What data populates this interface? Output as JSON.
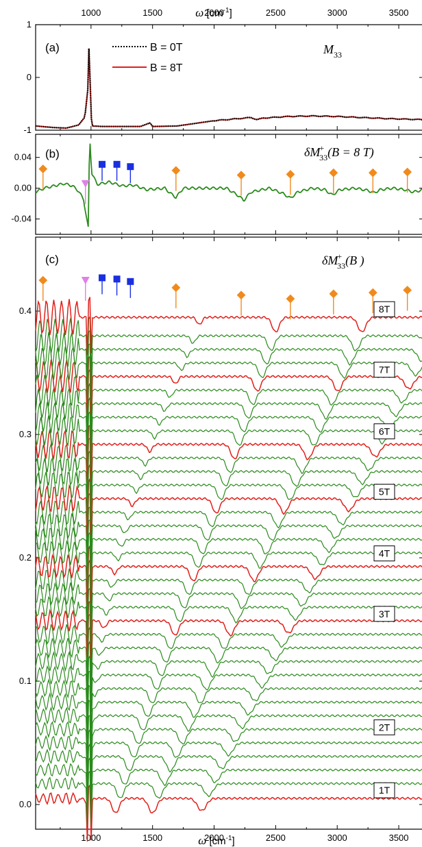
{
  "chart_data": [
    {
      "panel": "(a)",
      "type": "line",
      "quantity_label": "M33",
      "xlim": [
        550,
        3700
      ],
      "ylim": [
        -1,
        1
      ],
      "y_ticks": [
        "1",
        "0",
        "-1"
      ],
      "series": [
        {
          "name": "B = 0T",
          "color": "#000000",
          "style": "dotted",
          "x": [
            550,
            650,
            700,
            800,
            900,
            950,
            975,
            985,
            995,
            1005,
            1100,
            1400,
            1480,
            1500,
            1700,
            2000,
            2300,
            2350,
            2400,
            2600,
            2800,
            3000,
            3200,
            3400,
            3700
          ],
          "y": [
            -0.92,
            -0.94,
            -0.95,
            -0.96,
            -0.9,
            -0.75,
            -0.2,
            0.72,
            -0.3,
            -0.92,
            -0.93,
            -0.93,
            -0.86,
            -0.93,
            -0.92,
            -0.82,
            -0.76,
            -0.8,
            -0.77,
            -0.74,
            -0.73,
            -0.74,
            -0.76,
            -0.78,
            -0.8
          ]
        },
        {
          "name": "B = 8T",
          "color": "#e0201b",
          "style": "solid",
          "x": [
            550,
            650,
            700,
            800,
            900,
            950,
            975,
            985,
            995,
            1005,
            1100,
            1400,
            1480,
            1500,
            1700,
            2000,
            2300,
            2350,
            2400,
            2600,
            2800,
            3000,
            3200,
            3400,
            3700
          ],
          "y": [
            -0.92,
            -0.94,
            -0.95,
            -0.96,
            -0.9,
            -0.75,
            -0.2,
            0.72,
            -0.3,
            -0.92,
            -0.93,
            -0.93,
            -0.86,
            -0.93,
            -0.92,
            -0.82,
            -0.76,
            -0.8,
            -0.77,
            -0.74,
            -0.73,
            -0.74,
            -0.76,
            -0.78,
            -0.8
          ]
        }
      ]
    },
    {
      "panel": "(b)",
      "type": "line",
      "quantity_label": "δM33+(B = 8 T)",
      "xlim": [
        550,
        3700
      ],
      "ylim": [
        -0.06,
        0.07
      ],
      "y_ticks": [
        "0.04",
        "0.00",
        "-0.04"
      ],
      "series": [
        {
          "color": "#2a8a1c",
          "x": [
            550,
            620,
            700,
            780,
            850,
            900,
            940,
            965,
            978,
            985,
            992,
            1005,
            1050,
            1150,
            1250,
            1350,
            1450,
            1600,
            1640,
            1690,
            1750,
            1900,
            2100,
            2200,
            2240,
            2300,
            2450,
            2560,
            2620,
            2680,
            2800,
            2900,
            2960,
            3020,
            3150,
            3250,
            3300,
            3350,
            3450,
            3550,
            3620,
            3700
          ],
          "y": [
            -0.005,
            0.0,
            0.003,
            0.006,
            0.003,
            -0.004,
            -0.015,
            -0.04,
            -0.052,
            0.03,
            0.06,
            0.02,
            0.005,
            0.008,
            0.003,
            0.004,
            -0.002,
            0.0,
            -0.006,
            -0.012,
            0.0,
            0.0,
            0.0,
            -0.01,
            -0.016,
            -0.005,
            0.0,
            -0.007,
            -0.013,
            -0.005,
            0.0,
            -0.002,
            -0.009,
            -0.002,
            0.0,
            -0.003,
            -0.006,
            -0.002,
            0.0,
            -0.002,
            -0.005,
            -0.002
          ]
        }
      ],
      "markers": {
        "orange_diamonds_x": [
          610,
          1690,
          2220,
          2620,
          2970,
          3290,
          3570
        ],
        "orange_diamonds_y": [
          0.025,
          0.023,
          0.017,
          0.018,
          0.02,
          0.02,
          0.021
        ],
        "blue_squares_x": [
          1090,
          1210,
          1320
        ],
        "blue_squares_y": [
          0.031,
          0.031,
          0.028
        ],
        "violet_triangle_x": [
          955
        ],
        "violet_triangle_y": [
          0.006
        ]
      }
    },
    {
      "panel": "(c)",
      "type": "line",
      "quantity_label": "δM33+(B )",
      "xlabel": "ω [cm-1]",
      "xlim": [
        550,
        3700
      ],
      "x_ticks": [
        "1000",
        "1500",
        "2000",
        "2500",
        "3000",
        "3500"
      ],
      "ylim": [
        -0.02,
        0.46
      ],
      "y_ticks": [
        "0.4",
        "0.3",
        "0.2",
        "0.1",
        "0.0"
      ],
      "field_labels": [
        "8T",
        "7T",
        "6T",
        "5T",
        "4T",
        "3T",
        "2T",
        "1T"
      ],
      "field_offsets": [
        0.395,
        0.346,
        0.296,
        0.247,
        0.197,
        0.148,
        0.056,
        0.005
      ],
      "curve_offsets": [
        0.005,
        0.017,
        0.028,
        0.039,
        0.05,
        0.061,
        0.072,
        0.083,
        0.094,
        0.105,
        0.116,
        0.127,
        0.138,
        0.149,
        0.16,
        0.171,
        0.182,
        0.193,
        0.204,
        0.215,
        0.226,
        0.237,
        0.248,
        0.259,
        0.27,
        0.281,
        0.292,
        0.303,
        0.314,
        0.325,
        0.336,
        0.347,
        0.358,
        0.369,
        0.38,
        0.395
      ],
      "markers": {
        "orange_diamonds_x": [
          610,
          1690,
          2220,
          2620,
          2970,
          3290,
          3570
        ],
        "orange_diamonds_y": [
          0.425,
          0.419,
          0.413,
          0.41,
          0.414,
          0.415,
          0.417
        ],
        "blue_squares_x": [
          1090,
          1210,
          1320
        ],
        "blue_squares_y": [
          0.427,
          0.426,
          0.424
        ],
        "violet_triangle_x": [
          955
        ],
        "violet_triangle_y": [
          0.425
        ]
      }
    }
  ],
  "top_axis": {
    "title": "ω [cm-1]",
    "tick_labels": [
      "1000",
      "1500",
      "2000",
      "2500",
      "3000",
      "3500"
    ]
  },
  "legend": {
    "entry1": "B = 0T",
    "entry2": "B = 8T"
  },
  "colors": {
    "field_red": "#e0201b",
    "curve_green": "#2a8a1c",
    "diamond_orange": "#f08a1c",
    "square_blue": "#1a2fe0",
    "triangle_violet": "#e080e8"
  }
}
